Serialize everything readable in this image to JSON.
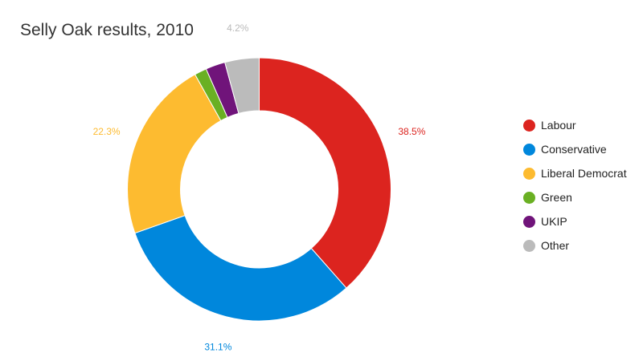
{
  "chart_data": {
    "type": "pie",
    "title": "Selly Oak results, 2010",
    "categories": [
      "Labour",
      "Conservative",
      "Liberal Democrat",
      "Green",
      "UKIP",
      "Other"
    ],
    "values": [
      38.5,
      31.1,
      22.3,
      1.5,
      2.4,
      4.2
    ],
    "data_labels": [
      "38.5%",
      "31.1%",
      "22.3%",
      "",
      "",
      "4.2%"
    ],
    "colors": [
      "#dc241f",
      "#0087dc",
      "#fdbb30",
      "#6ab023",
      "#70147a",
      "#bbbbbb"
    ],
    "donut": true,
    "legend_position": "right"
  }
}
